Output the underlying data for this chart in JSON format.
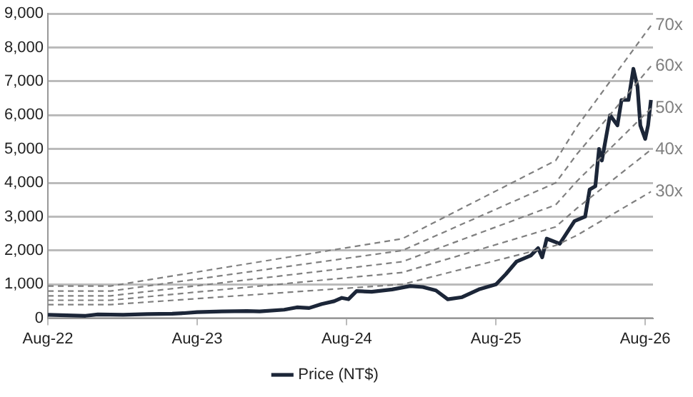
{
  "chart_data": {
    "type": "line",
    "xlim": [
      "2022-08-01",
      "2026-08-20"
    ],
    "xticks": [
      {
        "value": "2022-08-01",
        "label": "Aug-22"
      },
      {
        "value": "2023-08-01",
        "label": "Aug-23"
      },
      {
        "value": "2024-08-01",
        "label": "Aug-24"
      },
      {
        "value": "2025-08-01",
        "label": "Aug-25"
      },
      {
        "value": "2026-08-01",
        "label": "Aug-26"
      }
    ],
    "ylim": [
      0,
      9000
    ],
    "yticks": [
      {
        "value": 0,
        "label": "0"
      },
      {
        "value": 1000,
        "label": "1,000"
      },
      {
        "value": 2000,
        "label": "2,000"
      },
      {
        "value": 3000,
        "label": "3,000"
      },
      {
        "value": 4000,
        "label": "4,000"
      },
      {
        "value": 5000,
        "label": "5,000"
      },
      {
        "value": 6000,
        "label": "6,000"
      },
      {
        "value": 7000,
        "label": "7,000"
      },
      {
        "value": 8000,
        "label": "8,000"
      },
      {
        "value": 9000,
        "label": "9,000"
      }
    ],
    "grid": "y",
    "legend": "bottom",
    "marker": "none",
    "series": [
      {
        "name": "70x",
        "color": "#808080",
        "line_style": "dashed",
        "x": [
          "2022-08-01",
          "2023-01-01",
          "2024-12-15",
          "2025-12-25",
          "2026-02-15",
          "2026-08-15"
        ],
        "values": [
          950,
          950,
          2350,
          4660,
          5660,
          8650
        ]
      },
      {
        "name": "60x",
        "color": "#808080",
        "line_style": "dashed",
        "x": [
          "2022-08-01",
          "2023-01-01",
          "2024-12-15",
          "2025-12-25",
          "2026-02-15",
          "2026-08-15"
        ],
        "values": [
          800,
          800,
          2000,
          4000,
          4850,
          7450
        ]
      },
      {
        "name": "50x",
        "color": "#808080",
        "line_style": "dashed",
        "x": [
          "2022-08-01",
          "2023-01-01",
          "2024-12-15",
          "2025-12-25",
          "2026-02-15",
          "2026-08-15"
        ],
        "values": [
          660,
          660,
          1670,
          3350,
          4050,
          6200
        ]
      },
      {
        "name": "40x",
        "color": "#808080",
        "line_style": "dashed",
        "x": [
          "2022-08-01",
          "2023-01-01",
          "2024-12-15",
          "2025-12-25",
          "2026-02-15",
          "2026-08-15"
        ],
        "values": [
          530,
          530,
          1350,
          2700,
          3250,
          4980
        ]
      },
      {
        "name": "30x",
        "color": "#808080",
        "line_style": "dashed",
        "x": [
          "2022-08-01",
          "2023-01-01",
          "2024-12-15",
          "2025-12-25",
          "2026-02-15",
          "2026-08-15"
        ],
        "values": [
          400,
          400,
          1000,
          2150,
          2450,
          3740
        ]
      },
      {
        "name": "Price (NT$)",
        "color": "#1c2638",
        "line_style": "solid",
        "x": [
          "2022-08-01",
          "2022-10-01",
          "2022-11-01",
          "2022-12-01",
          "2023-02-01",
          "2023-04-01",
          "2023-06-01",
          "2023-07-01",
          "2023-08-01",
          "2023-10-01",
          "2023-12-01",
          "2024-01-01",
          "2024-03-01",
          "2024-04-01",
          "2024-05-01",
          "2024-06-01",
          "2024-07-01",
          "2024-07-20",
          "2024-08-05",
          "2024-08-25",
          "2024-10-01",
          "2024-11-20",
          "2025-01-03",
          "2025-02-03",
          "2025-03-07",
          "2025-04-05",
          "2025-05-10",
          "2025-06-20",
          "2025-08-01",
          "2025-08-25",
          "2025-09-20",
          "2025-10-25",
          "2025-11-12",
          "2025-11-22",
          "2025-12-03",
          "2026-01-04",
          "2026-02-09",
          "2026-03-07",
          "2026-03-18",
          "2026-04-01",
          "2026-04-10",
          "2026-04-17",
          "2026-05-07",
          "2026-05-25",
          "2026-06-04",
          "2026-06-21",
          "2026-07-03",
          "2026-07-13",
          "2026-07-20",
          "2026-08-01",
          "2026-08-08",
          "2026-08-15"
        ],
        "values": [
          100,
          80,
          70,
          110,
          100,
          120,
          130,
          150,
          180,
          200,
          210,
          200,
          250,
          320,
          300,
          420,
          500,
          600,
          560,
          800,
          780,
          850,
          950,
          920,
          820,
          560,
          620,
          850,
          1000,
          1300,
          1670,
          1850,
          2070,
          1800,
          2350,
          2200,
          2870,
          3000,
          3800,
          3900,
          5000,
          4660,
          6000,
          5700,
          6450,
          6450,
          7370,
          6850,
          5700,
          5300,
          5700,
          6450
        ]
      }
    ]
  }
}
